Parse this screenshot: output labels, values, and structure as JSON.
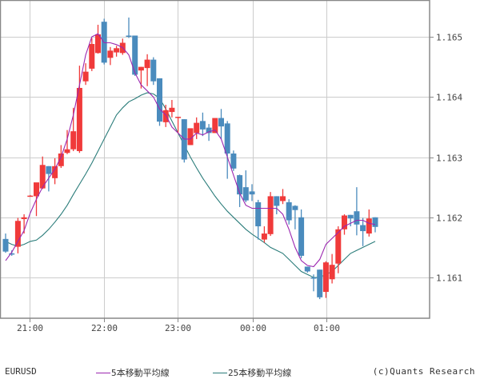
{
  "symbol": "EURUSD",
  "copyright": "(c)Quants Research",
  "legend": [
    {
      "label": "5本移動平均線",
      "color": "#9b27b0"
    },
    {
      "label": "25本移動平均線",
      "color": "#2a7c7a"
    }
  ],
  "colors": {
    "up": "#f03a3a",
    "down": "#4a8bbd",
    "grid": "#cccccc",
    "axis": "#888888",
    "text": "#444444"
  },
  "chart_data": {
    "type": "candlestick",
    "title": "",
    "symbol": "EURUSD",
    "interval_minutes": 5,
    "xlabel": "",
    "ylabel": "",
    "ylim": [
      1.16054,
      1.16575
    ],
    "yticks": [
      1.161,
      1.162,
      1.163,
      1.164,
      1.165
    ],
    "ytick_labels": [
      "1.161",
      "1.162",
      "1.163",
      "1.164",
      "1.165"
    ],
    "xticks": [
      "21:00",
      "22:00",
      "23:00",
      "00:00",
      "01:00"
    ],
    "grid": true,
    "legend_position": "bottom",
    "series": [
      {
        "name": "5本移動平均線",
        "type": "line",
        "period": 5,
        "color": "#9b27b0"
      },
      {
        "name": "25本移動平均線",
        "type": "line",
        "period": 25,
        "color": "#2a7c7a"
      }
    ],
    "candles": [
      {
        "t": "20:40",
        "o": 1.16164,
        "h": 1.16173,
        "l": 1.16141,
        "c": 1.16143
      },
      {
        "t": "20:45",
        "o": 1.1614,
        "h": 1.16145,
        "l": 1.16136,
        "c": 1.16139
      },
      {
        "t": "20:50",
        "o": 1.16151,
        "h": 1.16199,
        "l": 1.1614,
        "c": 1.16194
      },
      {
        "t": "20:55",
        "o": 1.16197,
        "h": 1.16205,
        "l": 1.16173,
        "c": 1.162
      },
      {
        "t": "21:00",
        "o": 1.16236,
        "h": 1.16237,
        "l": 1.16236,
        "c": 1.16236
      },
      {
        "t": "21:05",
        "o": 1.16235,
        "h": 1.16238,
        "l": 1.16202,
        "c": 1.16258
      },
      {
        "t": "21:10",
        "o": 1.16248,
        "h": 1.16301,
        "l": 1.16247,
        "c": 1.16287
      },
      {
        "t": "21:15",
        "o": 1.16285,
        "h": 1.16285,
        "l": 1.16243,
        "c": 1.16272
      },
      {
        "t": "21:20",
        "o": 1.16265,
        "h": 1.16298,
        "l": 1.16255,
        "c": 1.16285
      },
      {
        "t": "21:25",
        "o": 1.16285,
        "h": 1.1632,
        "l": 1.16282,
        "c": 1.16306
      },
      {
        "t": "21:30",
        "o": 1.16307,
        "h": 1.16345,
        "l": 1.16305,
        "c": 1.16313
      },
      {
        "t": "21:35",
        "o": 1.16313,
        "h": 1.16382,
        "l": 1.1631,
        "c": 1.16343
      },
      {
        "t": "21:40",
        "o": 1.1631,
        "h": 1.16452,
        "l": 1.16307,
        "c": 1.16415
      },
      {
        "t": "21:45",
        "o": 1.16426,
        "h": 1.16456,
        "l": 1.1642,
        "c": 1.16442
      },
      {
        "t": "21:50",
        "o": 1.16447,
        "h": 1.16498,
        "l": 1.16443,
        "c": 1.16488
      },
      {
        "t": "21:55",
        "o": 1.16473,
        "h": 1.1652,
        "l": 1.16472,
        "c": 1.16504
      },
      {
        "t": "22:00",
        "o": 1.16525,
        "h": 1.1653,
        "l": 1.16454,
        "c": 1.16457
      },
      {
        "t": "22:05",
        "o": 1.16465,
        "h": 1.16483,
        "l": 1.16453,
        "c": 1.16477
      },
      {
        "t": "22:10",
        "o": 1.16474,
        "h": 1.16485,
        "l": 1.16467,
        "c": 1.16481
      },
      {
        "t": "22:15",
        "o": 1.16473,
        "h": 1.16497,
        "l": 1.1647,
        "c": 1.1649
      },
      {
        "t": "22:20",
        "o": 1.16502,
        "h": 1.16532,
        "l": 1.16498,
        "c": 1.165
      },
      {
        "t": "22:25",
        "o": 1.16502,
        "h": 1.16502,
        "l": 1.16435,
        "c": 1.16437
      },
      {
        "t": "22:30",
        "o": 1.16444,
        "h": 1.1645,
        "l": 1.16414,
        "c": 1.1645
      },
      {
        "t": "22:35",
        "o": 1.16448,
        "h": 1.16471,
        "l": 1.16418,
        "c": 1.16462
      },
      {
        "t": "22:40",
        "o": 1.16462,
        "h": 1.16466,
        "l": 1.1642,
        "c": 1.16426
      },
      {
        "t": "22:45",
        "o": 1.16431,
        "h": 1.16431,
        "l": 1.16352,
        "c": 1.16359
      },
      {
        "t": "22:50",
        "o": 1.16358,
        "h": 1.16387,
        "l": 1.1635,
        "c": 1.16378
      },
      {
        "t": "22:55",
        "o": 1.16375,
        "h": 1.16395,
        "l": 1.16366,
        "c": 1.16382
      },
      {
        "t": "23:00",
        "o": 1.16367,
        "h": 1.16367,
        "l": 1.1634,
        "c": 1.16367
      },
      {
        "t": "23:05",
        "o": 1.16363,
        "h": 1.16363,
        "l": 1.16291,
        "c": 1.16296
      },
      {
        "t": "23:10",
        "o": 1.1632,
        "h": 1.1634,
        "l": 1.1632,
        "c": 1.16348
      },
      {
        "t": "23:15",
        "o": 1.1634,
        "h": 1.16366,
        "l": 1.1633,
        "c": 1.16357
      },
      {
        "t": "23:20",
        "o": 1.1636,
        "h": 1.16374,
        "l": 1.16335,
        "c": 1.16346
      },
      {
        "t": "23:25",
        "o": 1.16349,
        "h": 1.16355,
        "l": 1.16327,
        "c": 1.1634
      },
      {
        "t": "23:30",
        "o": 1.1634,
        "h": 1.1636,
        "l": 1.1634,
        "c": 1.16365
      },
      {
        "t": "23:35",
        "o": 1.16365,
        "h": 1.1638,
        "l": 1.1633,
        "c": 1.16351
      },
      {
        "t": "23:40",
        "o": 1.16356,
        "h": 1.1636,
        "l": 1.16264,
        "c": 1.16306
      },
      {
        "t": "23:45",
        "o": 1.16306,
        "h": 1.16311,
        "l": 1.16277,
        "c": 1.16281
      },
      {
        "t": "23:50",
        "o": 1.1627,
        "h": 1.16271,
        "l": 1.16217,
        "c": 1.16238
      },
      {
        "t": "23:55",
        "o": 1.1625,
        "h": 1.16278,
        "l": 1.16225,
        "c": 1.16228
      },
      {
        "t": "00:00",
        "o": 1.16243,
        "h": 1.16255,
        "l": 1.16227,
        "c": 1.16238
      },
      {
        "t": "00:05",
        "o": 1.16225,
        "h": 1.16229,
        "l": 1.16163,
        "c": 1.16185
      },
      {
        "t": "00:10",
        "o": 1.16163,
        "h": 1.16185,
        "l": 1.16158,
        "c": 1.16173
      },
      {
        "t": "00:15",
        "o": 1.16172,
        "h": 1.16242,
        "l": 1.16169,
        "c": 1.16235
      },
      {
        "t": "00:20",
        "o": 1.16235,
        "h": 1.16235,
        "l": 1.16205,
        "c": 1.16219
      },
      {
        "t": "00:25",
        "o": 1.16227,
        "h": 1.16247,
        "l": 1.16222,
        "c": 1.16235
      },
      {
        "t": "00:30",
        "o": 1.16225,
        "h": 1.1623,
        "l": 1.16188,
        "c": 1.16195
      },
      {
        "t": "00:35",
        "o": 1.16219,
        "h": 1.1622,
        "l": 1.1618,
        "c": 1.16212
      },
      {
        "t": "00:40",
        "o": 1.162,
        "h": 1.16213,
        "l": 1.16132,
        "c": 1.16136
      },
      {
        "t": "00:45",
        "o": 1.16118,
        "h": 1.16118,
        "l": 1.16108,
        "c": 1.1611
      },
      {
        "t": "00:50",
        "o": 1.161,
        "h": 1.16105,
        "l": 1.16077,
        "c": 1.16098
      },
      {
        "t": "00:55",
        "o": 1.16113,
        "h": 1.16113,
        "l": 1.16064,
        "c": 1.16067
      },
      {
        "t": "01:00",
        "o": 1.16076,
        "h": 1.16127,
        "l": 1.16066,
        "c": 1.16125
      },
      {
        "t": "01:05",
        "o": 1.16097,
        "h": 1.16139,
        "l": 1.1609,
        "c": 1.16121
      },
      {
        "t": "01:10",
        "o": 1.16123,
        "h": 1.16185,
        "l": 1.16107,
        "c": 1.1618
      },
      {
        "t": "01:15",
        "o": 1.1618,
        "h": 1.16205,
        "l": 1.16171,
        "c": 1.16203
      },
      {
        "t": "01:20",
        "o": 1.16204,
        "h": 1.16204,
        "l": 1.16185,
        "c": 1.16198
      },
      {
        "t": "01:25",
        "o": 1.1621,
        "h": 1.1625,
        "l": 1.1617,
        "c": 1.16188
      },
      {
        "t": "01:30",
        "o": 1.16187,
        "h": 1.16199,
        "l": 1.16152,
        "c": 1.16177
      },
      {
        "t": "01:35",
        "o": 1.16173,
        "h": 1.16213,
        "l": 1.16168,
        "c": 1.16198
      },
      {
        "t": "01:40",
        "o": 1.162,
        "h": 1.162,
        "l": 1.16175,
        "c": 1.16184
      }
    ],
    "ma5": [
      1.16128,
      1.16142,
      1.1616,
      1.16178,
      1.16207,
      1.1623,
      1.1625,
      1.16265,
      1.1628,
      1.163,
      1.1633,
      1.1637,
      1.1642,
      1.1647,
      1.165,
      1.16505,
      1.1649,
      1.1649,
      1.16487,
      1.16482,
      1.1647,
      1.1644,
      1.1642,
      1.1641,
      1.164,
      1.1638,
      1.1637,
      1.1635,
      1.1634,
      1.1633,
      1.1633,
      1.1634,
      1.16337,
      1.16342,
      1.16345,
      1.1633,
      1.163,
      1.1627,
      1.1624,
      1.1622,
      1.16215,
      1.16215,
      1.16215,
      1.16215,
      1.16215,
      1.16205,
      1.1618,
      1.1615,
      1.16128,
      1.1612,
      1.16118,
      1.1613,
      1.16155,
      1.16165,
      1.16175,
      1.16185,
      1.1619,
      1.16195,
      1.16195,
      1.1619,
      1.16188
    ],
    "ma25": [
      1.1616,
      1.16155,
      1.16152,
      1.16155,
      1.1616,
      1.16162,
      1.1617,
      1.1618,
      1.16192,
      1.16205,
      1.1622,
      1.16238,
      1.16255,
      1.16272,
      1.1629,
      1.1631,
      1.1633,
      1.1635,
      1.1637,
      1.16382,
      1.16392,
      1.16397,
      1.16403,
      1.16407,
      1.16405,
      1.16398,
      1.1638,
      1.1636,
      1.1634,
      1.1632,
      1.163,
      1.16282,
      1.16265,
      1.1625,
      1.16235,
      1.16222,
      1.1621,
      1.162,
      1.1619,
      1.1618,
      1.16172,
      1.16165,
      1.16158,
      1.1615,
      1.16145,
      1.1614,
      1.1613,
      1.1612,
      1.1611,
      1.16105,
      1.161,
      1.161,
      1.16105,
      1.1611,
      1.1612,
      1.1613,
      1.1614,
      1.16145,
      1.1615,
      1.16155,
      1.1616
    ]
  }
}
